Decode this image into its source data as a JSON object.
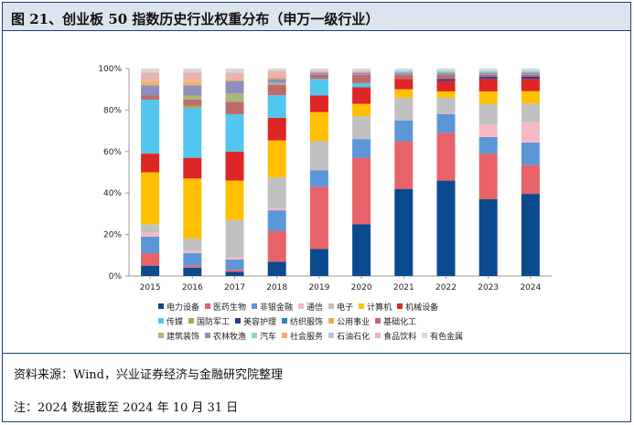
{
  "title": "图 21、创业板 50 指数历史行业权重分布（申万一级行业）",
  "source": "资料来源：Wind，兴业证券经济与金融研究院整理",
  "note": "注：2024 数据截至 2024 年 10 月 31 日",
  "chart_data": {
    "type": "bar",
    "stacked": true,
    "categories": [
      "2015",
      "2016",
      "2017",
      "2018",
      "2019",
      "2020",
      "2021",
      "2022",
      "2023",
      "2024"
    ],
    "ylim": [
      0,
      100
    ],
    "yticks": [
      "0%",
      "20%",
      "40%",
      "60%",
      "80%",
      "100%"
    ],
    "series": [
      {
        "name": "电力设备",
        "color": "#0b4a8f",
        "values": [
          5,
          4,
          2,
          7,
          13,
          25,
          42,
          46,
          37,
          40
        ]
      },
      {
        "name": "医药生物",
        "color": "#e8626a",
        "values": [
          6,
          1,
          1,
          15,
          30,
          32,
          23,
          23,
          22,
          14
        ]
      },
      {
        "name": "非银金融",
        "color": "#5b97d8",
        "values": [
          8,
          6,
          5,
          10,
          8,
          9,
          10,
          9,
          8,
          11
        ]
      },
      {
        "name": "通信",
        "color": "#f7b9c4",
        "values": [
          2,
          1,
          1,
          1,
          0,
          0,
          0,
          0,
          6,
          10
        ]
      },
      {
        "name": "电子",
        "color": "#c0c0c0",
        "values": [
          4,
          6,
          18,
          15,
          14,
          11,
          11,
          8,
          10,
          9
        ]
      },
      {
        "name": "计算机",
        "color": "#ffc000",
        "values": [
          25,
          29,
          19,
          18,
          14,
          6,
          4,
          3,
          6,
          6
        ]
      },
      {
        "name": "机械设备",
        "color": "#de2626",
        "values": [
          9,
          10,
          14,
          11,
          8,
          8,
          5,
          5,
          6,
          6
        ]
      },
      {
        "name": "传媒",
        "color": "#53c6ef",
        "values": [
          26,
          24,
          18,
          11,
          8,
          2,
          0,
          0,
          0,
          0
        ]
      },
      {
        "name": "国防军工",
        "color": "#8cb85a",
        "values": [
          0,
          1,
          0,
          0,
          0,
          0,
          0,
          0,
          0,
          0
        ]
      },
      {
        "name": "美容护理",
        "color": "#2b3d8f",
        "values": [
          0,
          0,
          0,
          0,
          0,
          0,
          0,
          1,
          1,
          1
        ]
      },
      {
        "name": "纺织服饰",
        "color": "#2b8aa6",
        "values": [
          0,
          0,
          0,
          0,
          0,
          0,
          0,
          0,
          0,
          0
        ]
      },
      {
        "name": "公用事业",
        "color": "#f6a35c",
        "values": [
          0,
          0,
          0,
          0,
          0,
          0,
          0,
          0,
          0,
          0
        ]
      },
      {
        "name": "基础化工",
        "color": "#c06a6a",
        "values": [
          2,
          3,
          6,
          5,
          2,
          4,
          2,
          2,
          1,
          1
        ]
      },
      {
        "name": "建筑装饰",
        "color": "#a8b87a",
        "values": [
          0,
          2,
          4,
          1,
          0,
          0,
          0,
          0,
          0,
          0
        ]
      },
      {
        "name": "农林牧渔",
        "color": "#8f8fbf",
        "values": [
          5,
          5,
          6,
          2,
          1,
          1,
          1,
          1,
          1,
          1
        ]
      },
      {
        "name": "汽车",
        "color": "#8fd6c9",
        "values": [
          0,
          0,
          0,
          0,
          0,
          0,
          1,
          1,
          1,
          1
        ]
      },
      {
        "name": "社会服务",
        "color": "#f5b06a",
        "values": [
          2,
          2,
          1,
          1,
          0,
          0,
          0,
          0,
          0,
          0
        ]
      },
      {
        "name": "石油石化",
        "color": "#b0c4de",
        "values": [
          0,
          0,
          0,
          0,
          0,
          0,
          0,
          0,
          0,
          0
        ]
      },
      {
        "name": "食品饮料",
        "color": "#e7b3b3",
        "values": [
          4,
          4,
          3,
          3,
          1,
          1,
          0,
          0,
          0,
          0
        ]
      },
      {
        "name": "有色金属",
        "color": "#d8d8d8",
        "values": [
          2,
          2,
          2,
          1,
          1,
          1,
          1,
          1,
          1,
          1
        ]
      }
    ]
  }
}
